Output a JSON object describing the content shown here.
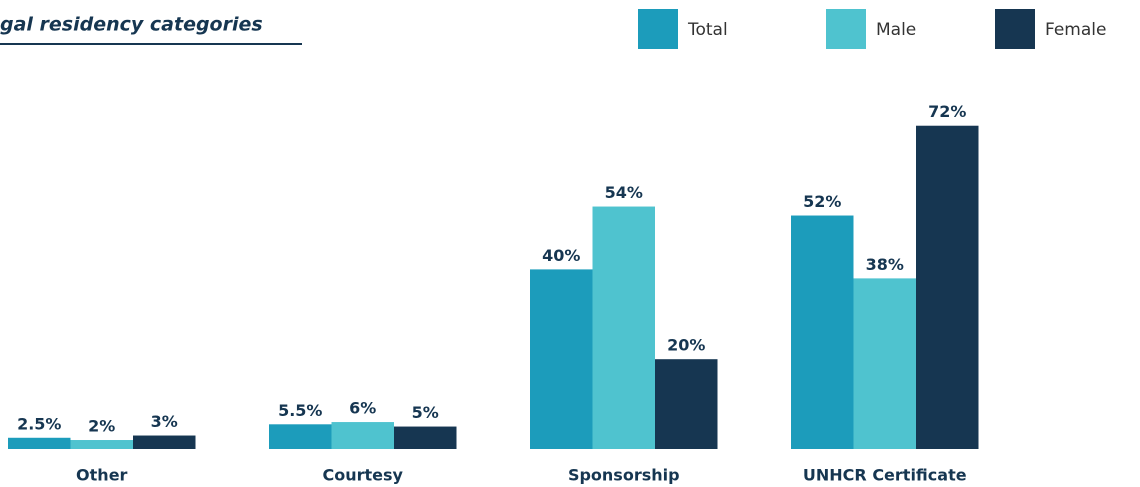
{
  "chart_data": {
    "type": "bar",
    "title": "gal residency categories",
    "categories": [
      "Other",
      "Courtesy",
      "Sponsorship",
      "UNHCR Certificate"
    ],
    "series": [
      {
        "name": "Total",
        "color": "#1c9cbb",
        "values": [
          2.5,
          5.5,
          40,
          52
        ],
        "value_labels": [
          "2.5%",
          "5.5%",
          "40%",
          "52%"
        ]
      },
      {
        "name": "Male",
        "color": "#4fc3cf",
        "values": [
          2,
          6,
          54,
          38
        ],
        "value_labels": [
          "2%",
          "6%",
          "54%",
          "38%"
        ]
      },
      {
        "name": "Female",
        "color": "#163651",
        "values": [
          3,
          5,
          20,
          72
        ],
        "value_labels": [
          "3%",
          "5%",
          "20%",
          "72%"
        ]
      }
    ]
  }
}
